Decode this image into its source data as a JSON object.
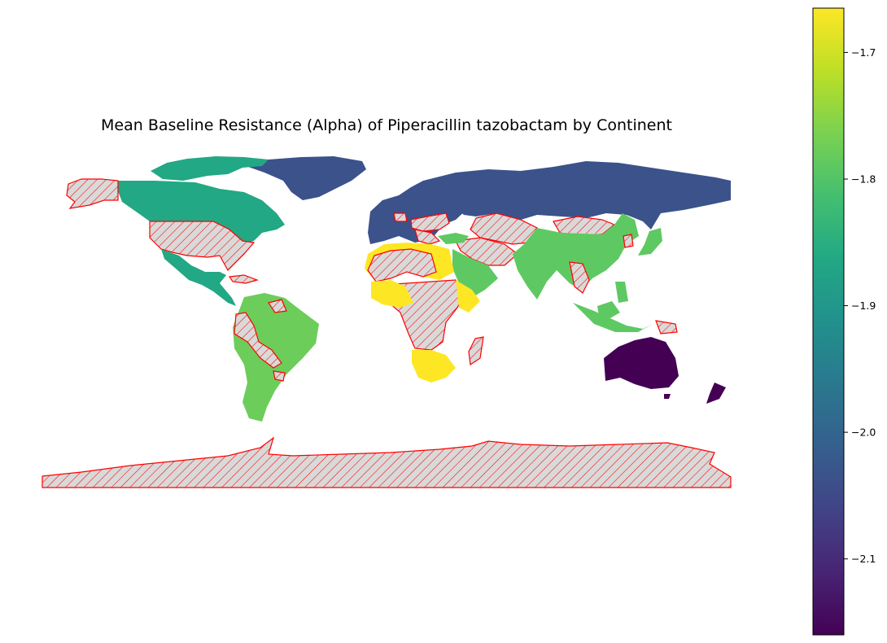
{
  "title": "Mean Baseline Resistance (Alpha) of Piperacillin tazobactam by Continent",
  "colorbar": {
    "colormap": "viridis",
    "min": -2.16,
    "max": -1.665,
    "ticks": [
      {
        "value": -1.7,
        "label": "−1.7"
      },
      {
        "value": -1.8,
        "label": "−1.8"
      },
      {
        "value": -1.9,
        "label": "−1.9"
      },
      {
        "value": -2.0,
        "label": "−2.0"
      },
      {
        "value": -2.1,
        "label": "−2.1"
      }
    ]
  },
  "continents": [
    {
      "name": "Africa",
      "value": -1.665,
      "color": "#fde725"
    },
    {
      "name": "Asia",
      "value": -1.81,
      "color": "#5ec962"
    },
    {
      "name": "South America",
      "value": -1.81,
      "color": "#6ccd5a"
    },
    {
      "name": "North America",
      "value": -1.87,
      "color": "#22a884"
    },
    {
      "name": "Europe",
      "value": -2.03,
      "color": "#3b528b"
    },
    {
      "name": "Oceania",
      "value": -2.16,
      "color": "#440154"
    }
  ],
  "missing_data": {
    "fill": "#d9d9d9",
    "edge": "#ff0000",
    "hatch": "diagonal"
  }
}
